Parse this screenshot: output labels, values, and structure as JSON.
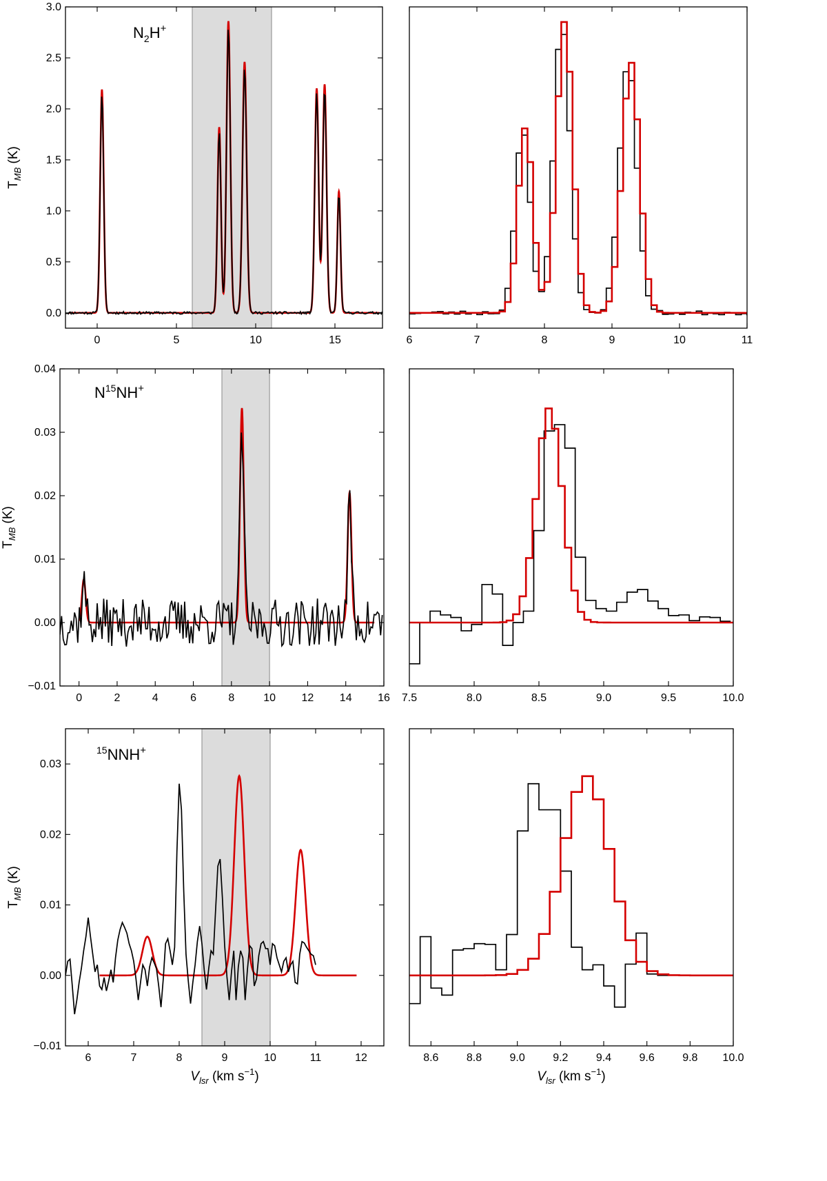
{
  "figure": {
    "ylabel_base": "T",
    "ylabel_sub": "MB",
    "ylabel_unit": " (K)",
    "xlabel_base": "V",
    "xlabel_sub": "lsr",
    "xlabel_unit": " (km s",
    "xlabel_exp": "−1",
    "xlabel_close": ")"
  },
  "colors": {
    "observed": "#000000",
    "model": "#d40000",
    "shade_fill": "#dcdcdc",
    "shade_edge": "#9a9a9a"
  },
  "chart_data": [
    {
      "id": "n2h-full",
      "type": "line",
      "molecule": "N2H+",
      "title_parts": [
        "N",
        "2",
        "H",
        "+"
      ],
      "xlim": [
        -2,
        18
      ],
      "ylim": [
        -0.15,
        3.0
      ],
      "xticks": [
        0,
        5,
        10,
        15
      ],
      "yticks": [
        0.0,
        0.5,
        1.0,
        1.5,
        2.0,
        2.5,
        3.0
      ],
      "ytick_labels": [
        "0.0",
        "0.5",
        "1.0",
        "1.5",
        "2.0",
        "2.5",
        "3.0"
      ],
      "shaded_range": [
        6.0,
        11.0
      ],
      "show_ylabel": true,
      "show_xlabel": false,
      "step": false,
      "model_x_range": [
        -1.8,
        17.8
      ],
      "components": [
        {
          "center": 0.3,
          "amp": 2.19,
          "sigma": 0.11
        },
        {
          "center": 7.7,
          "amp": 1.82,
          "sigma": 0.11
        },
        {
          "center": 8.28,
          "amp": 2.86,
          "sigma": 0.12
        },
        {
          "center": 9.3,
          "amp": 2.46,
          "sigma": 0.13
        },
        {
          "center": 13.85,
          "amp": 2.2,
          "sigma": 0.12
        },
        {
          "center": 14.35,
          "amp": 2.24,
          "sigma": 0.12
        },
        {
          "center": 15.25,
          "amp": 1.19,
          "sigma": 0.1
        }
      ],
      "observed_scale": 0.98,
      "noise": 0.012,
      "obs_x_start": -2.0,
      "obs_x_end": 18.0,
      "obs_step": 0.06,
      "seed": 11
    },
    {
      "id": "n2h-zoom",
      "type": "line",
      "molecule": "N2H+",
      "xlim": [
        6,
        11
      ],
      "ylim": [
        -0.15,
        3.0
      ],
      "xticks": [
        6,
        7,
        8,
        9,
        10,
        11
      ],
      "yticks": [],
      "show_ylabel": false,
      "show_xlabel": false,
      "step": true,
      "bin": 0.0833,
      "obs_offset": 0.04,
      "model_x_range": [
        6.0,
        11.0
      ],
      "components": [
        {
          "center": 7.72,
          "amp": 1.82,
          "sigma": 0.11
        },
        {
          "center": 8.3,
          "amp": 2.86,
          "sigma": 0.12
        },
        {
          "center": 9.28,
          "amp": 2.46,
          "sigma": 0.13
        }
      ],
      "observed_scale": 0.99,
      "noise": 0.02,
      "seed": 23
    },
    {
      "id": "n15nh-full",
      "type": "line",
      "molecule": "N15NH+",
      "title_parts": [
        "N",
        "15",
        "NH",
        "+"
      ],
      "xlim": [
        -1,
        16
      ],
      "ylim": [
        -0.01,
        0.04
      ],
      "xticks": [
        0,
        2,
        4,
        6,
        8,
        10,
        12,
        14,
        16
      ],
      "yticks": [
        -0.01,
        0.0,
        0.01,
        0.02,
        0.03,
        0.04
      ],
      "ytick_labels": [
        "−0.01",
        "0.00",
        "0.01",
        "0.02",
        "0.03",
        "0.04"
      ],
      "shaded_range": [
        7.5,
        10.0
      ],
      "show_ylabel": true,
      "show_xlabel": false,
      "step": false,
      "model_x_range": [
        0.0,
        15.5
      ],
      "components": [
        {
          "center": 0.25,
          "amp": 0.0068,
          "sigma": 0.1
        },
        {
          "center": 8.55,
          "amp": 0.0338,
          "sigma": 0.1
        },
        {
          "center": 14.2,
          "amp": 0.0205,
          "sigma": 0.1
        }
      ],
      "observed_scale": 0.93,
      "noise": 0.0038,
      "obs_x_start": -1.0,
      "obs_x_end": 15.95,
      "obs_step": 0.085,
      "seed": 37
    },
    {
      "id": "n15nh-zoom",
      "type": "line",
      "molecule": "N15NH+",
      "xlim": [
        7.5,
        10.0
      ],
      "ylim": [
        -0.01,
        0.04
      ],
      "xticks": [
        7.5,
        8.0,
        8.5,
        9.0,
        9.5,
        10.0
      ],
      "xtick_labels": [
        "7.5",
        "8.0",
        "8.5",
        "9.0",
        "9.5",
        "10.0"
      ],
      "yticks": [],
      "show_ylabel": false,
      "show_xlabel": false,
      "step": true,
      "model_x_range": [
        7.5,
        10.0
      ],
      "model_bin": 0.05,
      "model_components": [
        {
          "center": 8.58,
          "amp": 0.0338,
          "sigma": 0.1
        }
      ],
      "observed_steps": {
        "x0": 7.5,
        "bin": 0.08,
        "y": [
          -0.0065,
          0.0,
          0.0018,
          0.0012,
          0.0008,
          -0.0013,
          -0.0003,
          0.006,
          0.0045,
          -0.0036,
          0.0,
          0.0018,
          0.0145,
          0.0302,
          0.0312,
          0.0275,
          0.0103,
          0.0035,
          0.0022,
          0.0018,
          0.0032,
          0.0048,
          0.0052,
          0.0034,
          0.0022,
          0.0011,
          0.0012,
          0.0003,
          0.0009,
          0.0008,
          0.0002
        ]
      }
    },
    {
      "id": "15nnh-full",
      "type": "line",
      "molecule": "15NNH+",
      "title_parts": [
        "",
        "15",
        "NNH",
        "+"
      ],
      "xlim": [
        5.5,
        12.5
      ],
      "ylim": [
        -0.01,
        0.035
      ],
      "xticks": [
        6,
        7,
        8,
        9,
        10,
        11,
        12
      ],
      "yticks": [
        -0.01,
        0.0,
        0.01,
        0.02,
        0.03
      ],
      "ytick_labels": [
        "−0.01",
        "0.00",
        "0.01",
        "0.02",
        "0.03"
      ],
      "shaded_range": [
        8.5,
        10.0
      ],
      "show_ylabel": true,
      "show_xlabel": true,
      "step": false,
      "model_x_range": [
        6.25,
        11.9
      ],
      "components": [
        {
          "center": 7.3,
          "amp": 0.0055,
          "sigma": 0.11
        },
        {
          "center": 9.32,
          "amp": 0.0283,
          "sigma": 0.11
        },
        {
          "center": 10.67,
          "amp": 0.0178,
          "sigma": 0.11
        }
      ],
      "observed": {
        "x0": 5.5,
        "dx": 0.05,
        "y": [
          0.0,
          0.002,
          0.0023,
          -0.0015,
          -0.0055,
          -0.0035,
          -0.001,
          0.001,
          0.0035,
          0.0055,
          0.0082,
          0.0055,
          0.003,
          0.0005,
          0.0015,
          -0.0015,
          -0.002,
          -0.0003,
          -0.0022,
          -0.0008,
          0.0008,
          -0.001,
          0.0025,
          0.005,
          0.0065,
          0.0075,
          0.0068,
          0.006,
          0.0045,
          0.0035,
          0.002,
          -0.0005,
          -0.0035,
          -0.001,
          0.0015,
          0.0008,
          -0.0015,
          0.0012,
          0.0025,
          0.0018,
          0.001,
          -0.0015,
          -0.0045,
          -0.0005,
          0.0045,
          0.0052,
          0.0035,
          0.0015,
          0.004,
          0.0175,
          0.0272,
          0.0235,
          0.012,
          0.003,
          -0.0008,
          -0.004,
          -0.001,
          0.0015,
          0.0048,
          0.007,
          0.0045,
          0.0008,
          -0.002,
          0.001,
          0.0035,
          0.003,
          0.0092,
          0.0155,
          0.0165,
          0.011,
          0.0042,
          -0.0002,
          -0.0035,
          0.0005,
          0.0035,
          -0.0035,
          0.0012,
          0.0035,
          0.0025,
          -0.0035,
          0.0008,
          0.0042,
          0.0038,
          -0.0015,
          -0.0005,
          0.0028,
          0.0045,
          0.0048,
          0.0038,
          0.0038,
          0.0015,
          0.0045,
          0.0042,
          0.0025,
          0.0015,
          0.0005,
          0.002,
          0.0025,
          0.0005,
          0.0015,
          0.002,
          -0.001,
          -0.0012,
          0.003,
          0.0048,
          0.0046,
          0.004,
          0.0035,
          0.003,
          0.0028,
          0.0015
        ]
      }
    },
    {
      "id": "15nnh-zoom",
      "type": "line",
      "molecule": "15NNH+",
      "xlim": [
        8.5,
        10.0
      ],
      "ylim": [
        -0.01,
        0.035
      ],
      "xticks": [
        8.6,
        8.8,
        9.0,
        9.2,
        9.4,
        9.6,
        9.8,
        10.0
      ],
      "xtick_labels": [
        "8.6",
        "8.8",
        "9.0",
        "9.2",
        "9.4",
        "9.6",
        "9.8",
        "10.0"
      ],
      "yticks": [],
      "show_ylabel": false,
      "show_xlabel": true,
      "step": true,
      "model_x_range": [
        8.5,
        10.0
      ],
      "model_bin": 0.05,
      "model_components": [
        {
          "center": 9.32,
          "amp": 0.0283,
          "sigma": 0.11
        }
      ],
      "observed_steps": {
        "x0": 8.5,
        "bin": 0.05,
        "y": [
          -0.004,
          0.0055,
          -0.0018,
          -0.0028,
          0.0036,
          0.0038,
          0.0045,
          0.0044,
          0.0008,
          0.0058,
          0.0205,
          0.0272,
          0.0235,
          0.0235,
          0.0148,
          0.004,
          0.0008,
          0.0015,
          -0.0015,
          -0.0045,
          0.0016,
          0.006,
          0.0002,
          0.0
        ]
      }
    }
  ]
}
